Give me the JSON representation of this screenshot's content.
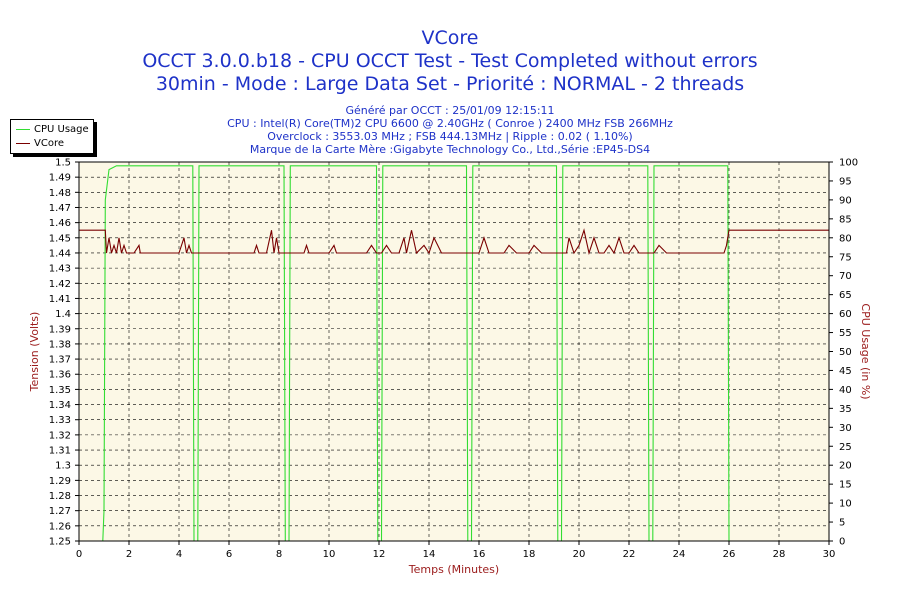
{
  "header": {
    "title": "VCore",
    "subtitle_1": "OCCT 3.0.0.b18 - CPU OCCT Test - Test Completed without errors",
    "subtitle_2": "30min - Mode : Large Data Set - Priorité : NORMAL - 2 threads",
    "info_1": "Généré par OCCT : 25/01/09 12:15:11",
    "info_2": "CPU : Intel(R) Core(TM)2 CPU 6600 @ 2.40GHz ( Conroe ) 2400 MHz FSB 266MHz",
    "info_3": "Overclock : 3553.03 MHz ; FSB 444.13MHz | Ripple : 0.02 ( 1.10%)",
    "info_4": "Marque de la Carte Mère :Gigabyte Technology Co., Ltd.,Série :EP45-DS4"
  },
  "colors": {
    "plot_bg": "#fcf8e6",
    "cpu_line": "#33dd33",
    "vcore_line": "#7a0000",
    "left_axis_label": "#9b1b1b",
    "x_axis_label": "#9b1b1b"
  },
  "chart_data": {
    "type": "line",
    "title": "VCore",
    "xlabel": "Temps (Minutes)",
    "ylabel": "Tension (Volts)",
    "y2label": "CPU Usage (in %)",
    "xlim": [
      0,
      30
    ],
    "ylim": [
      1.25,
      1.5
    ],
    "y2lim": [
      0,
      100
    ],
    "x_ticks": [
      0,
      2,
      4,
      6,
      8,
      10,
      12,
      14,
      16,
      18,
      20,
      22,
      24,
      26,
      28,
      30
    ],
    "y_ticks": [
      1.25,
      1.26,
      1.27,
      1.28,
      1.29,
      1.3,
      1.31,
      1.32,
      1.33,
      1.34,
      1.35,
      1.36,
      1.37,
      1.38,
      1.39,
      1.4,
      1.41,
      1.42,
      1.43,
      1.44,
      1.45,
      1.46,
      1.47,
      1.48,
      1.49,
      1.5
    ],
    "y2_ticks": [
      0,
      5,
      10,
      15,
      20,
      25,
      30,
      35,
      40,
      45,
      50,
      55,
      60,
      65,
      70,
      75,
      80,
      85,
      90,
      95,
      100
    ],
    "grid": true,
    "legend_position": "top-left",
    "series": [
      {
        "name": "CPU Usage",
        "axis": "right",
        "x": [
          0,
          0.95,
          1.0,
          1.05,
          1.2,
          1.5,
          4.55,
          4.6,
          4.65,
          4.75,
          4.8,
          8.2,
          8.25,
          8.3,
          8.4,
          8.45,
          11.9,
          11.95,
          12.0,
          12.1,
          12.15,
          15.5,
          15.55,
          15.6,
          15.7,
          15.75,
          19.1,
          19.15,
          19.2,
          19.3,
          19.35,
          22.75,
          22.8,
          22.85,
          22.95,
          23.0,
          25.95,
          26.0,
          26.05,
          30
        ],
        "y": [
          0,
          0,
          8,
          90,
          98,
          99,
          99,
          0,
          0,
          0,
          99,
          99,
          0,
          0,
          0,
          99,
          99,
          0,
          0,
          0,
          99,
          99,
          0,
          0,
          0,
          99,
          99,
          0,
          0,
          0,
          99,
          99,
          0,
          0,
          0,
          99,
          99,
          0,
          0,
          0
        ]
      },
      {
        "name": "VCore",
        "axis": "left",
        "x": [
          0,
          1.05,
          1.1,
          1.2,
          1.3,
          1.4,
          1.5,
          1.6,
          1.7,
          1.8,
          1.9,
          2.0,
          2.2,
          2.4,
          2.45,
          2.5,
          2.7,
          3.0,
          3.3,
          3.5,
          4.0,
          4.2,
          4.3,
          4.4,
          4.5,
          4.6,
          5.0,
          6.0,
          7.0,
          7.1,
          7.2,
          7.5,
          7.7,
          7.8,
          7.9,
          8.0,
          8.1,
          8.2,
          9.0,
          9.1,
          9.2,
          9.5,
          10.0,
          10.2,
          10.3,
          10.5,
          11.0,
          11.5,
          11.7,
          11.9,
          12.0,
          12.1,
          12.3,
          12.5,
          12.8,
          13.0,
          13.1,
          13.3,
          13.5,
          13.8,
          14.0,
          14.2,
          14.5,
          14.8,
          15.0,
          15.3,
          16.0,
          16.2,
          16.4,
          16.6,
          17.0,
          17.2,
          17.5,
          17.7,
          18.0,
          18.2,
          18.5,
          19.0,
          19.5,
          19.6,
          19.8,
          20.0,
          20.2,
          20.4,
          20.6,
          20.8,
          21.0,
          21.2,
          21.4,
          21.6,
          21.8,
          22.0,
          22.2,
          22.4,
          22.6,
          22.8,
          23.0,
          23.2,
          23.5,
          23.8,
          24.0,
          25.8,
          25.9,
          26.0,
          26.1,
          30
        ],
        "y": [
          1.455,
          1.455,
          1.44,
          1.45,
          1.44,
          1.445,
          1.44,
          1.45,
          1.44,
          1.445,
          1.44,
          1.44,
          1.44,
          1.445,
          1.44,
          1.44,
          1.44,
          1.44,
          1.44,
          1.44,
          1.44,
          1.45,
          1.44,
          1.445,
          1.44,
          1.44,
          1.44,
          1.44,
          1.44,
          1.445,
          1.44,
          1.44,
          1.455,
          1.44,
          1.45,
          1.44,
          1.44,
          1.44,
          1.44,
          1.445,
          1.44,
          1.44,
          1.44,
          1.445,
          1.44,
          1.44,
          1.44,
          1.44,
          1.445,
          1.44,
          1.44,
          1.44,
          1.445,
          1.44,
          1.44,
          1.45,
          1.44,
          1.455,
          1.44,
          1.445,
          1.44,
          1.45,
          1.44,
          1.44,
          1.44,
          1.44,
          1.44,
          1.45,
          1.44,
          1.44,
          1.44,
          1.445,
          1.44,
          1.44,
          1.44,
          1.445,
          1.44,
          1.44,
          1.44,
          1.45,
          1.44,
          1.445,
          1.455,
          1.44,
          1.45,
          1.44,
          1.44,
          1.445,
          1.44,
          1.45,
          1.44,
          1.44,
          1.445,
          1.44,
          1.44,
          1.44,
          1.44,
          1.445,
          1.44,
          1.44,
          1.44,
          1.44,
          1.445,
          1.455,
          1.455,
          1.455
        ]
      }
    ]
  }
}
